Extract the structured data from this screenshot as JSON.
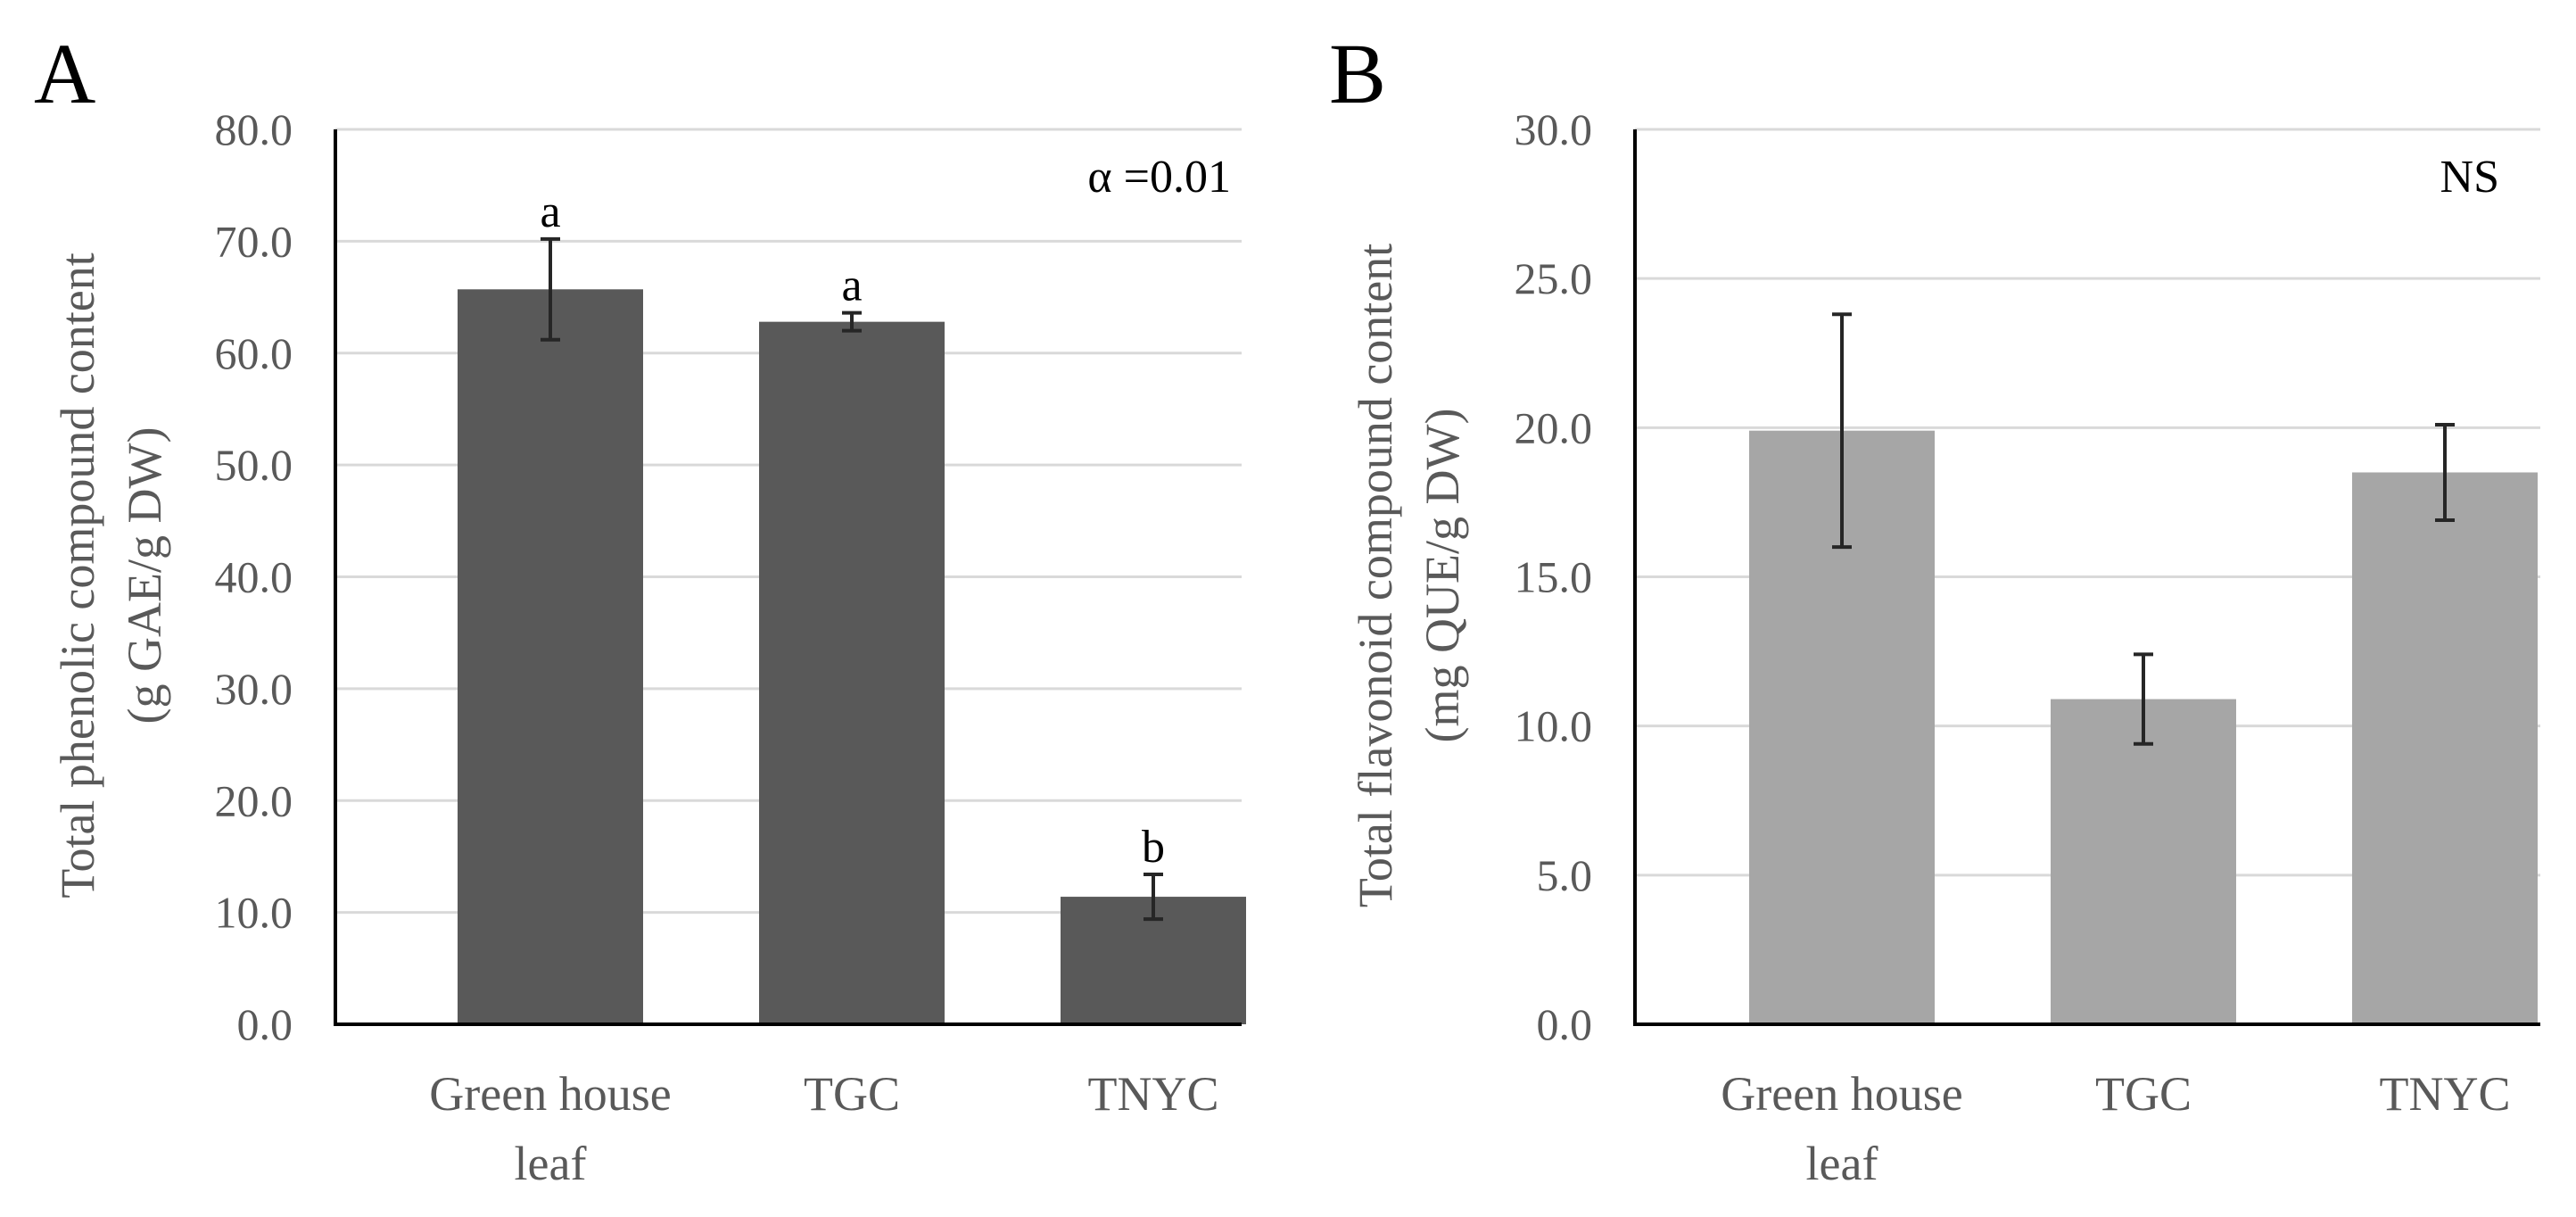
{
  "chart_data": [
    {
      "panel": "A",
      "type": "bar",
      "categories": [
        [
          "Green house",
          "leaf"
        ],
        [
          "TGC"
        ],
        [
          "TNYC"
        ]
      ],
      "values": [
        65.7,
        62.8,
        11.4
      ],
      "errors": [
        4.5,
        0.8,
        2.0
      ],
      "significance": [
        "a",
        "a",
        "b"
      ],
      "annotation": "α =0.01",
      "ylabel": [
        "Total phenolic compound content",
        "(g GAE/g DW)"
      ],
      "xlabel": "",
      "ylim": [
        0,
        80
      ],
      "yticks": [
        0,
        10,
        20,
        30,
        40,
        50,
        60,
        70,
        80
      ],
      "ytick_labels": [
        "0.0",
        "10.0",
        "20.0",
        "30.0",
        "40.0",
        "50.0",
        "60.0",
        "70.0",
        "80.0"
      ],
      "bar_color": "#595959",
      "grid": true
    },
    {
      "panel": "B",
      "type": "bar",
      "categories": [
        [
          "Green house",
          "leaf"
        ],
        [
          "TGC"
        ],
        [
          "TNYC"
        ]
      ],
      "values": [
        19.9,
        10.9,
        18.5
      ],
      "errors": [
        3.9,
        1.5,
        1.6
      ],
      "significance": [
        "",
        "",
        ""
      ],
      "annotation": "NS",
      "ylabel": [
        "Total flavonoid compound content",
        "(mg QUE/g DW)"
      ],
      "xlabel": "",
      "ylim": [
        0,
        30
      ],
      "yticks": [
        0,
        5,
        10,
        15,
        20,
        25,
        30
      ],
      "ytick_labels": [
        "0.0",
        "5.0",
        "10.0",
        "15.0",
        "20.0",
        "25.0",
        "30.0"
      ],
      "bar_color": "#a6a6a6",
      "grid": true
    }
  ]
}
